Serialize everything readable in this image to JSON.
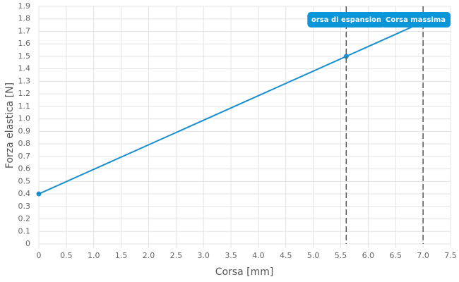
{
  "chart_data": {
    "type": "line",
    "x_label": "Corsa [mm]",
    "y_label": "Forza elastica [N]",
    "x": [
      0,
      5.6,
      7.0
    ],
    "series": [
      {
        "name": "Forza elastica",
        "color": "#1a8fd0",
        "values": [
          0.4,
          1.5,
          1.775
        ]
      }
    ],
    "xlim": [
      0,
      7.5
    ],
    "xticks": [
      0,
      0.5,
      {
        "value": 1,
        "label": "1.0"
      },
      1.5,
      {
        "value": 2,
        "label": "2.0"
      },
      2.5,
      {
        "value": 3,
        "label": "3.0"
      },
      3.5,
      {
        "value": 4,
        "label": "4.0"
      },
      4.5,
      {
        "value": 5,
        "label": "5.0"
      },
      5.5,
      {
        "value": 6,
        "label": "6.0"
      },
      6.5,
      {
        "value": 7,
        "label": "7.0"
      },
      7.5
    ],
    "ylim": [
      0,
      1.9
    ],
    "yticks": [
      0,
      0.1,
      0.2,
      0.3,
      0.4,
      0.5,
      0.6,
      0.7,
      0.8,
      0.9,
      {
        "value": 1,
        "label": "1.0"
      },
      1.1,
      1.2,
      1.3,
      1.4,
      1.5,
      1.6,
      1.7,
      1.8,
      1.9
    ],
    "grid": true,
    "annotations": [
      {
        "x": 5.6,
        "label": "Corsa di espansione",
        "color": "#0a96d8"
      },
      {
        "x": 7.0,
        "label": "Corsa massima",
        "color": "#0a96d8"
      }
    ]
  }
}
